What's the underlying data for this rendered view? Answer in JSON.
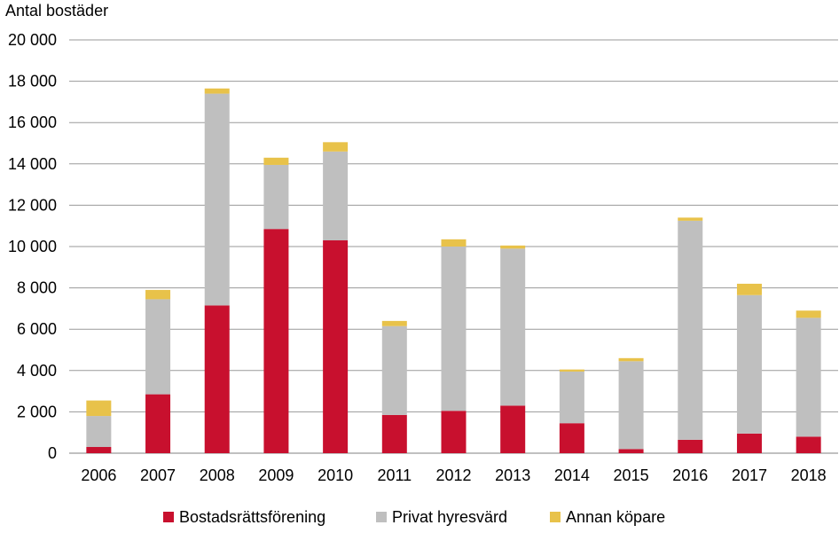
{
  "chart_data": {
    "type": "bar",
    "stacked": true,
    "title": "",
    "ylabel": "Antal bostäder",
    "xlabel": "",
    "ylim": [
      0,
      20000
    ],
    "yticks": [
      0,
      2000,
      4000,
      6000,
      8000,
      10000,
      12000,
      14000,
      16000,
      18000,
      20000
    ],
    "ytick_labels": [
      "0",
      "2 000",
      "4 000",
      "6 000",
      "8 000",
      "10 000",
      "12 000",
      "14 000",
      "16 000",
      "18 000",
      "20 000"
    ],
    "grid": true,
    "legend_position": "bottom",
    "categories": [
      "2006",
      "2007",
      "2008",
      "2009",
      "2010",
      "2011",
      "2012",
      "2013",
      "2014",
      "2015",
      "2016",
      "2017",
      "2018"
    ],
    "series": [
      {
        "name": "Bostadsrättsförening",
        "color": "#c8102e",
        "values": [
          300,
          2850,
          7150,
          10850,
          10300,
          1850,
          2050,
          2300,
          1450,
          200,
          650,
          950,
          800
        ]
      },
      {
        "name": "Privat hyresvärd",
        "color": "#bfbfbf",
        "values": [
          1500,
          4600,
          10250,
          3100,
          4300,
          4300,
          7950,
          7600,
          2500,
          4250,
          10600,
          6700,
          5750
        ]
      },
      {
        "name": "Annan köpare",
        "color": "#e8c24a",
        "values": [
          750,
          450,
          250,
          350,
          450,
          250,
          350,
          150,
          100,
          150,
          150,
          550,
          350
        ]
      }
    ]
  }
}
